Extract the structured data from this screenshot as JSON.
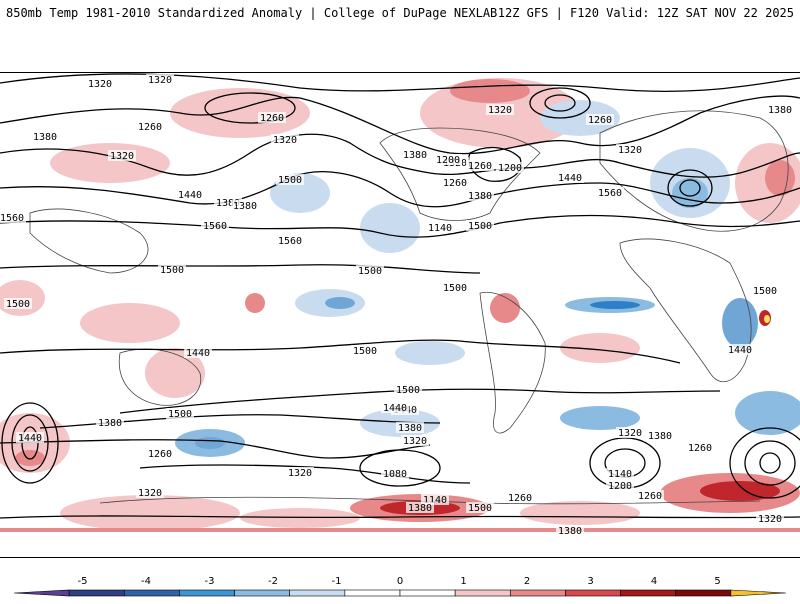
{
  "header": {
    "left_title": "850mb Temp 1981-2010 Standardized Anomaly | College of DuPage NEXLAB",
    "right_title": "12Z GFS | F120 Valid: 12Z SAT NOV 22 2025"
  },
  "map": {
    "contour_labels": [
      "1320",
      "1320",
      "1260",
      "1380",
      "1320",
      "1260",
      "1320",
      "1380",
      "1500",
      "1560",
      "1440",
      "1380",
      "1560",
      "1560",
      "1500",
      "1500",
      "1500",
      "1500",
      "1440",
      "1380",
      "1320",
      "1260",
      "1200",
      "1140",
      "1200",
      "1260",
      "1080",
      "1140",
      "1260",
      "1320",
      "1380",
      "1440",
      "1500",
      "1560",
      "1500",
      "1440",
      "1380",
      "1320",
      "1260",
      "1200",
      "1140",
      "1260",
      "1320",
      "1380",
      "1500",
      "1440",
      "1380",
      "1500",
      "1380",
      "1320",
      "1440",
      "1500",
      "1320",
      "1260",
      "1380",
      "1320",
      "1320",
      "1500",
      "1440",
      "1380",
      "1260"
    ],
    "anomaly_colors": {
      "strong_warm": "#c0272d",
      "warm": "#e7898b",
      "light_warm": "#f5c6c8",
      "light_cool": "#c9dcef",
      "cool": "#6fa6d6",
      "strong_cool": "#2f7fc6",
      "extreme_warm": "#f5e15a"
    }
  },
  "colorbar": {
    "tick_labels": [
      "-5",
      "-4",
      "-3",
      "-2",
      "-1",
      "0",
      "1",
      "2",
      "3",
      "4",
      "5"
    ],
    "colors": [
      "#5a3f96",
      "#2f3f82",
      "#2e63a8",
      "#3f94d2",
      "#8bbbe0",
      "#c9dcef",
      "#ffffff",
      "#ffffff",
      "#f5c6c8",
      "#e7898b",
      "#d64a4f",
      "#a5181e",
      "#7a0a0e",
      "#f5c02a"
    ]
  }
}
